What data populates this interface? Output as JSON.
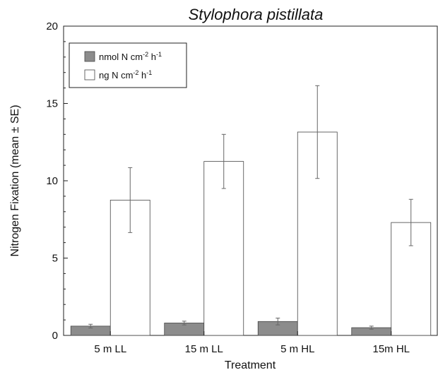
{
  "chart_data": {
    "type": "bar",
    "title": "Stylophora pistillata",
    "xlabel": "Treatment",
    "ylabel": "Nitrogen Fixation (mean ± SE)",
    "ylim": [
      0,
      20
    ],
    "yticks": [
      0,
      5,
      10,
      15,
      20
    ],
    "grid": false,
    "legend_position": "top-left",
    "categories": [
      "5 m LL",
      "15 m LL",
      "5 m HL",
      "15m HL"
    ],
    "series": [
      {
        "name": "nmol N cm-2 h-1",
        "legend": {
          "base": "nmol N cm",
          "exp1": "-2",
          "mid": " h",
          "exp2": "-1"
        },
        "color": "#8c8c8c",
        "values": [
          0.6,
          0.8,
          0.9,
          0.5
        ],
        "errors": [
          0.12,
          0.12,
          0.22,
          0.1
        ]
      },
      {
        "name": "ng N cm-2 h-1",
        "legend": {
          "base": "ng N cm",
          "exp1": "-2",
          "mid": " h",
          "exp2": "-1"
        },
        "color": "#ffffff",
        "values": [
          8.75,
          11.25,
          13.15,
          7.3
        ],
        "errors": [
          2.1,
          1.75,
          3.0,
          1.5
        ]
      }
    ]
  }
}
